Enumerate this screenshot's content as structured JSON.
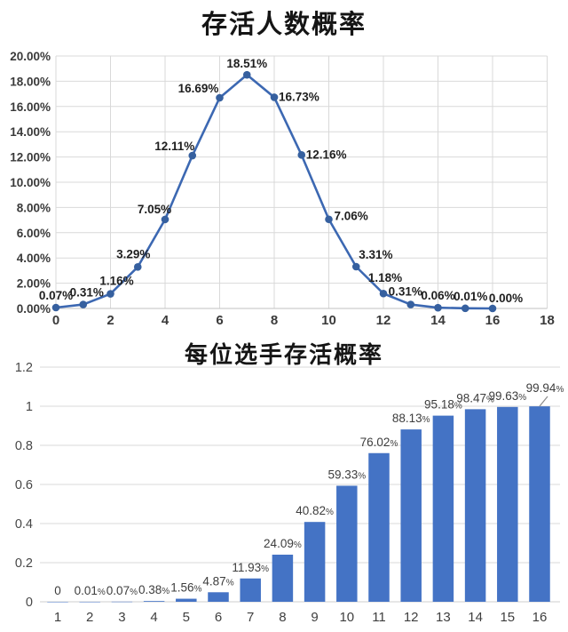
{
  "chart_data": [
    {
      "type": "line",
      "title": "存活人数概率",
      "x": [
        0,
        1,
        2,
        3,
        4,
        5,
        6,
        7,
        8,
        9,
        10,
        11,
        12,
        13,
        14,
        15,
        16
      ],
      "values_percent": [
        0.07,
        0.31,
        1.16,
        3.29,
        7.05,
        12.11,
        16.69,
        18.51,
        16.73,
        12.16,
        7.06,
        3.31,
        1.18,
        0.31,
        0.06,
        0.01,
        0.0
      ],
      "point_labels": [
        "0.07%",
        "0.31%",
        "1.16%",
        "3.29%",
        "7.05%",
        "12.11%",
        "16.69%",
        "18.51%",
        "16.73%",
        "12.16%",
        "7.06%",
        "3.31%",
        "1.18%",
        "0.31%",
        "0.06%",
        "0.01%",
        "0.00%"
      ],
      "x_ticks": [
        "0",
        "2",
        "4",
        "6",
        "8",
        "10",
        "12",
        "14",
        "16",
        "18"
      ],
      "y_ticks": [
        "0.00%",
        "2.00%",
        "4.00%",
        "6.00%",
        "8.00%",
        "10.00%",
        "12.00%",
        "14.00%",
        "16.00%",
        "18.00%",
        "20.00%"
      ],
      "xlim": [
        0,
        18
      ],
      "ylim_percent": [
        0,
        20
      ],
      "grid": "both",
      "legend": "none",
      "line_color": "#3c68b2",
      "marker_color": "#36609f"
    },
    {
      "type": "bar",
      "title": "每位选手存活概率",
      "categories": [
        "1",
        "2",
        "3",
        "4",
        "5",
        "6",
        "7",
        "8",
        "9",
        "10",
        "11",
        "12",
        "13",
        "14",
        "15",
        "16"
      ],
      "values": [
        0,
        0.0001,
        0.0007,
        0.0038,
        0.0156,
        0.0487,
        0.1193,
        0.2409,
        0.4082,
        0.5933,
        0.7602,
        0.8813,
        0.9518,
        0.9847,
        0.9963,
        0.9994
      ],
      "bar_labels": [
        "0",
        "0.01%",
        "0.07%",
        "0.38%",
        "1.56%",
        "4.87%",
        "11.93%",
        "24.09%",
        "40.82%",
        "59.33%",
        "76.02%",
        "88.13%",
        "95.18%",
        "98.47%",
        "99.63%",
        "99.94%"
      ],
      "y_ticks": [
        "0",
        "0.2",
        "0.4",
        "0.6",
        "0.8",
        "1",
        "1.2"
      ],
      "ylim": [
        0,
        1.2
      ],
      "grid": "horizontal",
      "legend": "none",
      "bar_color": "#4473c5"
    }
  ]
}
